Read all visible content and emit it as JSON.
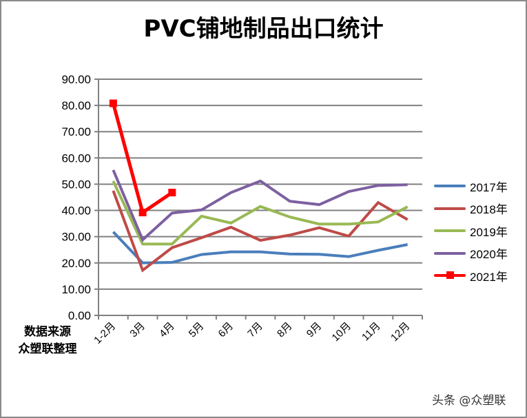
{
  "title": "PVC铺地制品出口统计",
  "source_note": [
    "数据来源",
    "众塑联整理"
  ],
  "watermark": "头条 @众塑联",
  "colors": {
    "2017年": "#4a7ebb",
    "2018年": "#be4b48",
    "2019年": "#98b954",
    "2020年": "#7d60a0",
    "2021年": "#ff0000",
    "grid": "#808080",
    "frame": "#8a8a8a"
  },
  "legend": [
    {
      "label": "2017年",
      "color": "#4a7ebb",
      "marker": false
    },
    {
      "label": "2018年",
      "color": "#be4b48",
      "marker": false
    },
    {
      "label": "2019年",
      "color": "#98b954",
      "marker": false
    },
    {
      "label": "2020年",
      "color": "#7d60a0",
      "marker": false
    },
    {
      "label": "2021年",
      "color": "#ff0000",
      "marker": true
    }
  ],
  "chart_data": {
    "type": "line",
    "title": "PVC铺地制品出口统计",
    "xlabel": "",
    "ylabel": "",
    "categories": [
      "1-2月",
      "3月",
      "4月",
      "5月",
      "6月",
      "7月",
      "8月",
      "9月",
      "10月",
      "11月",
      "12月"
    ],
    "yticks": [
      "0.00",
      "10.00",
      "20.00",
      "30.00",
      "40.00",
      "50.00",
      "60.00",
      "70.00",
      "80.00",
      "90.00"
    ],
    "ylim": [
      0,
      90
    ],
    "grid": true,
    "legend_position": "right",
    "series": [
      {
        "name": "2017年",
        "values": [
          31.8,
          20.0,
          20.2,
          23.2,
          24.2,
          24.2,
          23.4,
          23.3,
          22.4,
          24.8,
          27.0
        ]
      },
      {
        "name": "2018年",
        "values": [
          47.5,
          17.2,
          25.8,
          29.6,
          33.6,
          28.6,
          30.6,
          33.4,
          30.2,
          43.0,
          36.5
        ]
      },
      {
        "name": "2019年",
        "values": [
          51.2,
          27.2,
          27.2,
          37.8,
          35.2,
          41.5,
          37.5,
          34.8,
          34.8,
          35.6,
          41.4
        ]
      },
      {
        "name": "2020年",
        "values": [
          55.4,
          28.8,
          39.0,
          40.2,
          46.8,
          51.2,
          43.5,
          42.2,
          47.2,
          49.5,
          49.8
        ]
      },
      {
        "name": "2021年",
        "values": [
          80.8,
          39.2,
          46.8
        ]
      }
    ]
  }
}
